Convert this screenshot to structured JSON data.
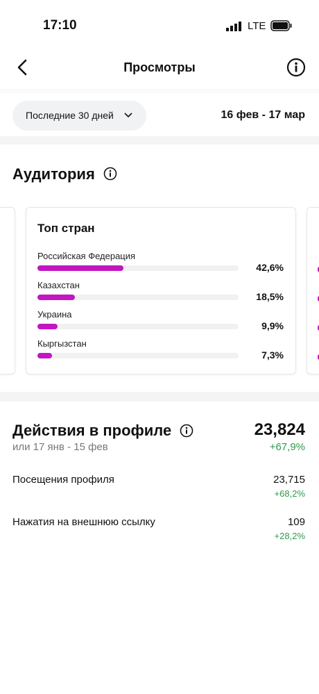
{
  "status_bar": {
    "time": "17:10",
    "network": "LTE"
  },
  "header": {
    "title": "Просмотры"
  },
  "filter": {
    "period": "Последние 30 дней",
    "date_range": "16 фев - 17 мар"
  },
  "audience": {
    "title": "Аудитория",
    "top_countries": {
      "title": "Топ стран",
      "countries": [
        {
          "name": "Российская Федерация",
          "value": 42.6,
          "label": "42,6%"
        },
        {
          "name": "Казахстан",
          "value": 18.5,
          "label": "18,5%"
        },
        {
          "name": "Украина",
          "value": 9.9,
          "label": "9,9%"
        },
        {
          "name": "Кыргызстан",
          "value": 7.3,
          "label": "7,3%"
        }
      ]
    }
  },
  "profile_actions": {
    "title": "Действия в профиле",
    "total": "23,824",
    "comparison": "или 17 янв - 15 фев",
    "change": "+67,9%",
    "rows": [
      {
        "label": "Посещения профиля",
        "value": "23,715",
        "change": "+68,2%"
      },
      {
        "label": "Нажатия на внешнюю ссылку",
        "value": "109",
        "change": "+28,2%"
      }
    ]
  }
}
